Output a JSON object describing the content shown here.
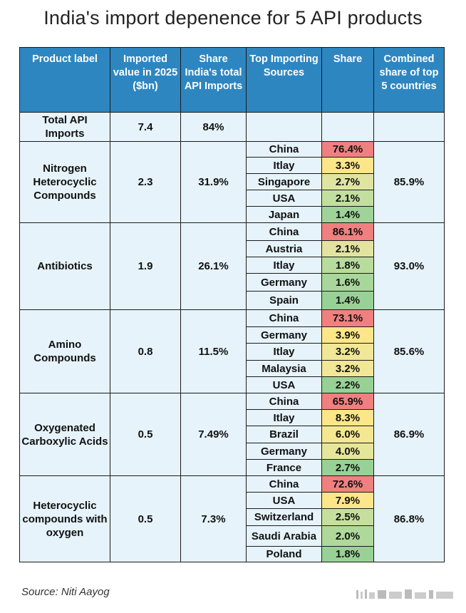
{
  "title": "India's import depenence for 5 API products",
  "headers": {
    "product": "Product label",
    "value": "Imported value in 2025 ($bn)",
    "share_total": "Share India's total API Imports",
    "sources": "Top Importing Sources",
    "share": "Share",
    "combined": "Combined share of top 5 countries"
  },
  "total_row": {
    "label": "Total API Imports",
    "value": "7.4",
    "share_total": "84%"
  },
  "groups": [
    {
      "product": "Nitrogen Heterocyclic Compounds",
      "value": "2.3",
      "share_total": "31.9%",
      "combined": "85.9%",
      "sources": [
        {
          "country": "China",
          "share": "76.4%",
          "color": "#f08080"
        },
        {
          "country": "Itlay",
          "share": "3.3%",
          "color": "#fde68a"
        },
        {
          "country": "Singapore",
          "share": "2.7%",
          "color": "#dfe5a0"
        },
        {
          "country": "USA",
          "share": "2.1%",
          "color": "#c2dfa0"
        },
        {
          "country": "Japan",
          "share": "1.4%",
          "color": "#9ed39a"
        }
      ]
    },
    {
      "product": "Antibiotics",
      "value": "1.9",
      "share_total": "26.1%",
      "combined": "93.0%",
      "sources": [
        {
          "country": "China",
          "share": "86.1%",
          "color": "#f08080"
        },
        {
          "country": "Austria",
          "share": "2.1%",
          "color": "#e2e3a0"
        },
        {
          "country": "Itlay",
          "share": "1.8%",
          "color": "#b8dc9c"
        },
        {
          "country": "Germany",
          "share": "1.6%",
          "color": "#a8d79a"
        },
        {
          "country": "Spain",
          "share": "1.4%",
          "color": "#98d196"
        }
      ]
    },
    {
      "product": "Amino Compounds",
      "value": "0.8",
      "share_total": "11.5%",
      "combined": "85.6%",
      "sources": [
        {
          "country": "China",
          "share": "73.1%",
          "color": "#f08080"
        },
        {
          "country": "Germany",
          "share": "3.9%",
          "color": "#fde68a"
        },
        {
          "country": "Itlay",
          "share": "3.2%",
          "color": "#f1e796"
        },
        {
          "country": "Malaysia",
          "share": "3.2%",
          "color": "#f1e796"
        },
        {
          "country": "USA",
          "share": "2.2%",
          "color": "#98d196"
        }
      ]
    },
    {
      "product": "Oxygenated Carboxylic Acids",
      "value": "0.5",
      "share_total": "7.49%",
      "combined": "86.9%",
      "sources": [
        {
          "country": "China",
          "share": "65.9%",
          "color": "#f08080"
        },
        {
          "country": "Itlay",
          "share": "8.3%",
          "color": "#fde68a"
        },
        {
          "country": "Brazil",
          "share": "6.0%",
          "color": "#f4e792"
        },
        {
          "country": "Germany",
          "share": "4.0%",
          "color": "#e6e69a"
        },
        {
          "country": "France",
          "share": "2.7%",
          "color": "#98d196"
        }
      ]
    },
    {
      "product": "Heterocyclic compounds with oxygen",
      "value": "0.5",
      "share_total": "7.3%",
      "combined": "86.8%",
      "sources": [
        {
          "country": "China",
          "share": "72.6%",
          "color": "#f08080"
        },
        {
          "country": "USA",
          "share": "7.9%",
          "color": "#fde68a"
        },
        {
          "country": "Switzerland",
          "share": "2.5%",
          "color": "#c6df9e"
        },
        {
          "country": "Saudi Arabia",
          "share": "2.0%",
          "color": "#aed99b"
        },
        {
          "country": "Poland",
          "share": "1.8%",
          "color": "#98d196"
        }
      ]
    }
  ],
  "source": "Source: Niti Aayog"
}
